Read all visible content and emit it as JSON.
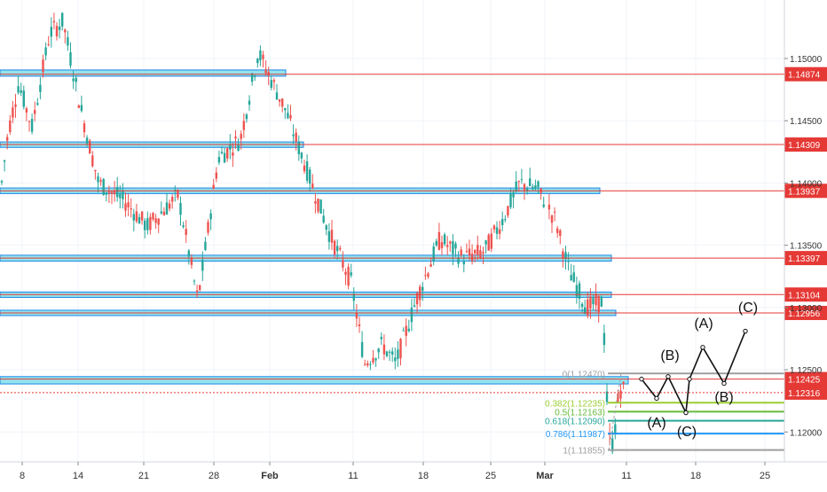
{
  "chart_data": {
    "type": "candlestick",
    "symbol_pair_hint": "",
    "y_axis": {
      "ticks": [
        "1.15000",
        "1.14500",
        "1.14000",
        "1.13500",
        "1.13000",
        "1.12500",
        "1.12000"
      ],
      "ylim": [
        1.1176,
        1.1547
      ]
    },
    "x_axis": {
      "labels": [
        "8",
        "14",
        "21",
        "28",
        "Feb",
        "11",
        "18",
        "25",
        "Mar",
        "11",
        "18",
        "25"
      ]
    },
    "price_levels": [
      {
        "value": 1.14874,
        "label": "1.14874",
        "color": "#e53935"
      },
      {
        "value": 1.14309,
        "label": "1.14309",
        "color": "#e53935"
      },
      {
        "value": 1.13937,
        "label": "1.13937",
        "color": "#e53935"
      },
      {
        "value": 1.13397,
        "label": "1.13397",
        "color": "#e53935"
      },
      {
        "value": 1.13104,
        "label": "1.13104",
        "color": "#e53935"
      },
      {
        "value": 1.12956,
        "label": "1.12956",
        "color": "#e53935"
      },
      {
        "value": 1.12425,
        "label": "1.12425",
        "color": "#e53935"
      },
      {
        "value": 1.12316,
        "label": "1.12316",
        "color": "#e53935",
        "dotted": true
      }
    ],
    "fibonacci": [
      {
        "label": "0(1.12470)",
        "value": 1.1247,
        "color": "#9e9e9e"
      },
      {
        "label": "0.382(1.12235)",
        "value": 1.12235,
        "color": "#9acd32"
      },
      {
        "label": "0.5(1.12163)",
        "value": 1.12163,
        "color": "#66bb3a"
      },
      {
        "label": "0.618(1.12090)",
        "value": 1.1209,
        "color": "#26a69a"
      },
      {
        "label": "0.786(1.11987)",
        "value": 1.11987,
        "color": "#2196f3"
      },
      {
        "label": "1(1.11855)",
        "value": 1.11855,
        "color": "#9e9e9e"
      }
    ],
    "wave_labels": [
      "(A)",
      "(B)",
      "(C)",
      "(A)",
      "(B)",
      "(C)"
    ],
    "colors": {
      "up": "#26a69a",
      "down": "#ef5350",
      "zone_fill": "#80deea",
      "zone_border": "#1e88e5",
      "grid": "#f0f3fa",
      "axis_text": "#333333"
    }
  }
}
